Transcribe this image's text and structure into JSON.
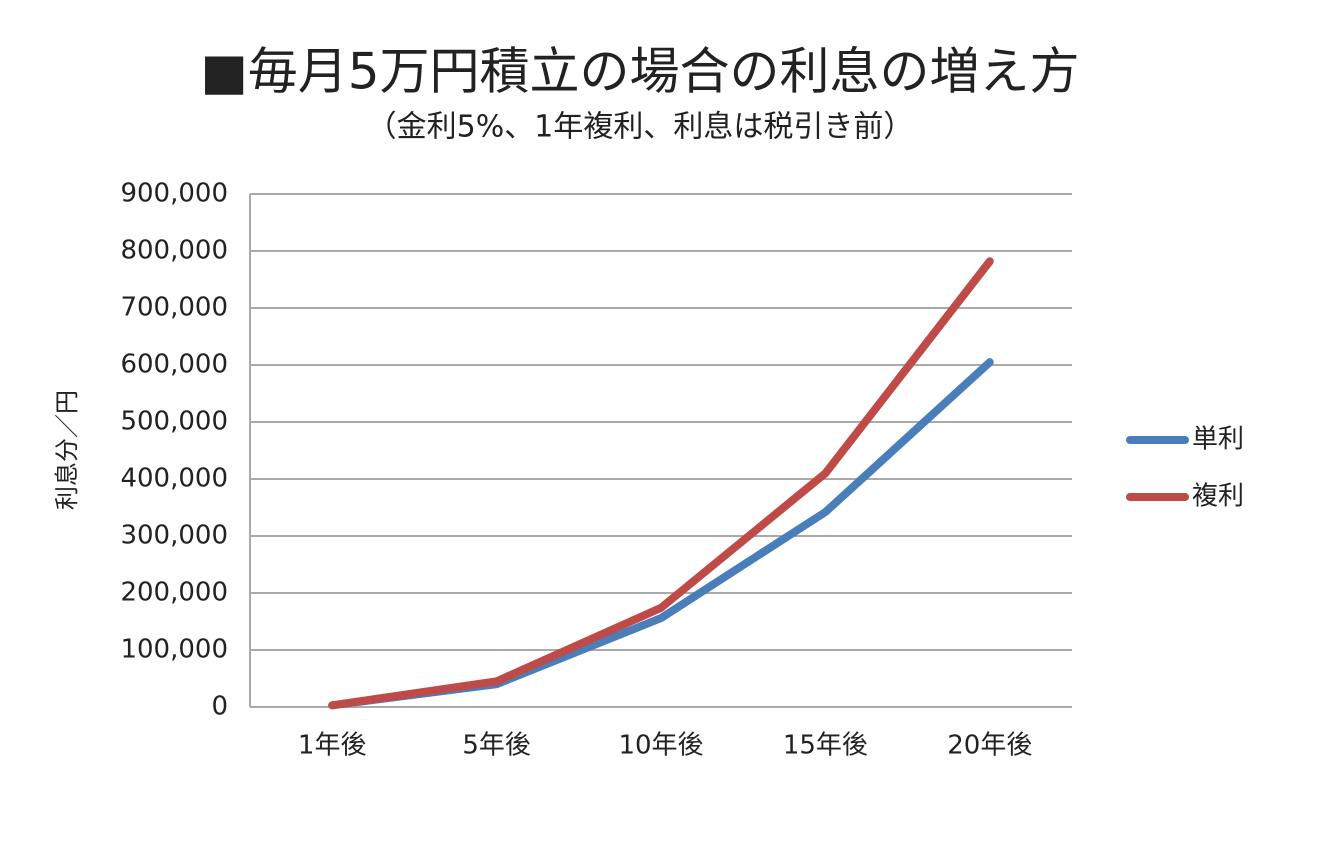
{
  "chart_data": {
    "type": "line",
    "title": "■毎月5万円積立の場合の利息の増え方",
    "subtitle": "（金利5%、1年複利、利息は税引き前）",
    "y_label": "利息分／円",
    "categories": [
      "1年後",
      "5年後",
      "10年後",
      "15年後",
      "20年後"
    ],
    "series": [
      {
        "name": "単利",
        "color": "#4a7ebb",
        "values": [
          3000,
          40000,
          156000,
          342000,
          605000
        ]
      },
      {
        "name": "複利",
        "color": "#be4b48",
        "values": [
          3000,
          45000,
          174000,
          410000,
          782000
        ]
      }
    ],
    "ylim": [
      0,
      900000
    ],
    "yticks": [
      0,
      {
        "value": 100000,
        "label": "100,000"
      },
      {
        "value": 200000,
        "label": "200,000"
      },
      {
        "value": 300000,
        "label": "300,000"
      },
      {
        "value": 400000,
        "label": "400,000"
      },
      {
        "value": 500000,
        "label": "500,000"
      },
      {
        "value": 600000,
        "label": "600,000"
      },
      {
        "value": 700000,
        "label": "700,000"
      },
      {
        "value": 800000,
        "label": "800,000"
      },
      {
        "value": 900000,
        "label": "900,000"
      }
    ],
    "grid": true,
    "legend": "right"
  }
}
